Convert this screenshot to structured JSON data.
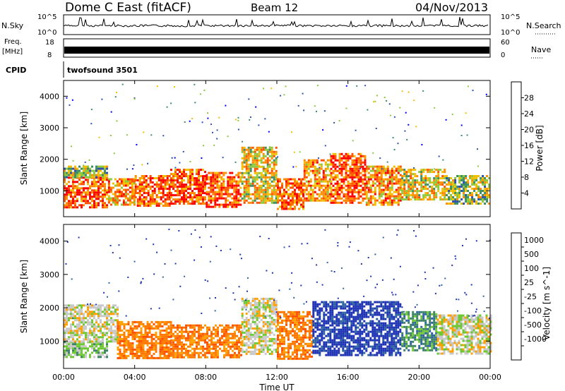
{
  "header": {
    "station": "Dome C East (fitACF)",
    "beam": "Beam 12",
    "date": "04/Nov/2013"
  },
  "top_panels": {
    "nsky_label": "N.Sky",
    "nsky_ticks": [
      "10^5",
      "10^0"
    ],
    "nsearch_label": "N.Search",
    "nsearch_ticks": [
      "10^5",
      "10^0"
    ],
    "freq_label": "Freq.",
    "freq_unit": "[MHz]",
    "freq_ticks": [
      "18",
      "8"
    ],
    "nave_label": "Nave",
    "nave_ticks": [
      "60",
      "0"
    ],
    "cpid_label": "CPID",
    "cpid_value": "twofsound 3501"
  },
  "colors": {
    "power_scale": [
      "#0000ff",
      "#2e4fb0",
      "#3c8c64",
      "#8cc83c",
      "#f0c000",
      "#ff8c00",
      "#ff5000",
      "#ff0000"
    ],
    "velocity_scale": [
      "#1e32b4",
      "#2d64a0",
      "#3c8264",
      "#6ec832",
      "#c8c8c8",
      "#ffa000",
      "#ff7800",
      "#ff5000",
      "#ff0000"
    ]
  },
  "chart_data": [
    {
      "type": "heatmap",
      "ylabel": "Slant Range [km]",
      "yticks": [
        "1000",
        "2000",
        "3000",
        "4000"
      ],
      "ylim": [
        180,
        4500
      ],
      "colorbar_label": "Power [dB]",
      "colorbar_ticks": [
        "4",
        "8",
        "12",
        "16",
        "20",
        "24",
        "28"
      ],
      "colorbar_range": [
        0,
        32
      ],
      "xlim": [
        0,
        24
      ],
      "blocks": [
        {
          "t0": 0.0,
          "t1": 2.5,
          "r0": 500,
          "r1": 1450,
          "v": 26
        },
        {
          "t0": 0.0,
          "t1": 2.5,
          "r0": 1450,
          "r1": 1800,
          "v": 12
        },
        {
          "t0": 2.5,
          "t1": 4.0,
          "r0": 550,
          "r1": 1400,
          "v": 22
        },
        {
          "t0": 4.0,
          "t1": 6.0,
          "r0": 500,
          "r1": 1500,
          "v": 28
        },
        {
          "t0": 6.0,
          "t1": 8.0,
          "r0": 600,
          "r1": 1700,
          "v": 27
        },
        {
          "t0": 8.0,
          "t1": 10.0,
          "r0": 500,
          "r1": 1600,
          "v": 26
        },
        {
          "t0": 10.0,
          "t1": 12.0,
          "r0": 600,
          "r1": 2400,
          "v": 20
        },
        {
          "t0": 12.0,
          "t1": 13.5,
          "r0": 400,
          "r1": 1400,
          "v": 29
        },
        {
          "t0": 13.5,
          "t1": 15.0,
          "r0": 700,
          "r1": 2000,
          "v": 22
        },
        {
          "t0": 15.0,
          "t1": 17.0,
          "r0": 600,
          "r1": 2200,
          "v": 26
        },
        {
          "t0": 17.0,
          "t1": 19.0,
          "r0": 550,
          "r1": 1800,
          "v": 24
        },
        {
          "t0": 19.0,
          "t1": 21.5,
          "r0": 700,
          "r1": 1700,
          "v": 18
        },
        {
          "t0": 21.5,
          "t1": 24.0,
          "r0": 600,
          "r1": 1500,
          "v": 12
        }
      ]
    },
    {
      "type": "heatmap",
      "ylabel": "Slant Range [km]",
      "yticks": [
        "1000",
        "2000",
        "3000",
        "4000"
      ],
      "ylim": [
        180,
        4500
      ],
      "colorbar_label": "Velocity [m s^-1]",
      "colorbar_ticks": [
        "1000",
        "500",
        "100",
        "25",
        "-25",
        "-100",
        "-500",
        "-1000"
      ],
      "xlabel": "Time UT",
      "xticks": [
        "00:00",
        "04:00",
        "08:00",
        "12:00",
        "16:00",
        "20:00",
        "00:00"
      ],
      "xlim": [
        0,
        24
      ],
      "blocks": [
        {
          "t0": 0.0,
          "t1": 2.5,
          "r0": 500,
          "r1": 1000,
          "class": 3
        },
        {
          "t0": 0.0,
          "t1": 3.0,
          "r0": 1000,
          "r1": 2100,
          "class": 4
        },
        {
          "t0": 3.0,
          "t1": 6.0,
          "r0": 500,
          "r1": 1600,
          "class": 6
        },
        {
          "t0": 6.0,
          "t1": 10.0,
          "r0": 500,
          "r1": 1500,
          "class": 6
        },
        {
          "t0": 10.0,
          "t1": 12.0,
          "r0": 600,
          "r1": 2300,
          "class": 4
        },
        {
          "t0": 12.0,
          "t1": 14.0,
          "r0": 500,
          "r1": 1900,
          "class": 6
        },
        {
          "t0": 14.0,
          "t1": 19.0,
          "r0": 600,
          "r1": 2200,
          "class": 0
        },
        {
          "t0": 19.0,
          "t1": 21.0,
          "r0": 700,
          "r1": 1900,
          "class": 2
        },
        {
          "t0": 21.0,
          "t1": 24.0,
          "r0": 600,
          "r1": 1800,
          "class": 4
        }
      ]
    }
  ]
}
